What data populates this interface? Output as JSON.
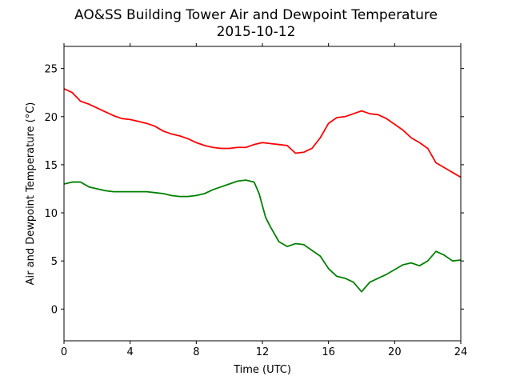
{
  "chart_data": {
    "type": "line",
    "title": "AO&SS Building Tower Air and Dewpoint Temperature",
    "subtitle": "2015-10-12",
    "xlabel": "Time (UTC)",
    "ylabel": "Air and Dewpoint Temperature (°C)",
    "xlim": [
      0,
      24
    ],
    "ylim": [
      -3.3,
      27.3
    ],
    "x_ticks": [
      0,
      4,
      8,
      12,
      16,
      20,
      24
    ],
    "y_ticks": [
      0,
      5,
      10,
      15,
      20,
      25
    ],
    "grid": false,
    "legend": "none",
    "series": [
      {
        "color": "#ff0000",
        "x": [
          0,
          0.5,
          1.0,
          1.5,
          2.0,
          2.5,
          3.0,
          3.5,
          4.0,
          4.5,
          5.0,
          5.5,
          6.0,
          6.5,
          7.0,
          7.5,
          8.0,
          8.5,
          9.0,
          9.5,
          10.0,
          10.5,
          11.0,
          11.5,
          12.0,
          12.5,
          13.0,
          13.5,
          14.0,
          14.5,
          15.0,
          15.5,
          16.0,
          16.5,
          17.0,
          17.5,
          18.0,
          18.5,
          19.0,
          19.5,
          20.0,
          20.5,
          21.0,
          21.5,
          22.0,
          22.5,
          23.0,
          23.5,
          24.0
        ],
        "values": [
          22.9,
          22.5,
          21.6,
          21.3,
          20.9,
          20.5,
          20.1,
          19.8,
          19.7,
          19.5,
          19.3,
          19.0,
          18.5,
          18.2,
          18.0,
          17.7,
          17.3,
          17.0,
          16.8,
          16.7,
          16.7,
          16.8,
          16.8,
          17.1,
          17.3,
          17.2,
          17.1,
          17.0,
          16.2,
          16.3,
          16.7,
          17.8,
          19.3,
          19.9,
          20.0,
          20.3,
          20.6,
          20.3,
          20.2,
          19.8,
          19.2,
          18.6,
          17.8,
          17.3,
          16.7,
          15.2,
          14.7,
          14.2,
          13.7
        ]
      },
      {
        "color": "#008000",
        "x": [
          0,
          0.5,
          1.0,
          1.5,
          2.0,
          2.5,
          3.0,
          3.5,
          4.0,
          4.5,
          5.0,
          5.5,
          6.0,
          6.5,
          7.0,
          7.5,
          8.0,
          8.5,
          9.0,
          9.5,
          10.0,
          10.5,
          11.0,
          11.5,
          11.8,
          12.2,
          12.5,
          13.0,
          13.5,
          14.0,
          14.5,
          15.0,
          15.5,
          16.0,
          16.5,
          17.0,
          17.5,
          18.0,
          18.5,
          19.0,
          19.5,
          20.0,
          20.5,
          21.0,
          21.5,
          22.0,
          22.5,
          23.0,
          23.5,
          24.0
        ],
        "values": [
          13.0,
          13.2,
          13.2,
          12.7,
          12.5,
          12.3,
          12.2,
          12.2,
          12.2,
          12.2,
          12.2,
          12.1,
          12.0,
          11.8,
          11.7,
          11.7,
          11.8,
          12.0,
          12.4,
          12.7,
          13.0,
          13.3,
          13.4,
          13.2,
          12.0,
          9.5,
          8.5,
          7.0,
          6.5,
          6.8,
          6.7,
          6.1,
          5.5,
          4.2,
          3.4,
          3.2,
          2.8,
          1.8,
          2.8,
          3.2,
          3.6,
          4.1,
          4.6,
          4.8,
          4.5,
          5.0,
          6.0,
          5.6,
          5.0,
          5.1
        ]
      }
    ]
  }
}
